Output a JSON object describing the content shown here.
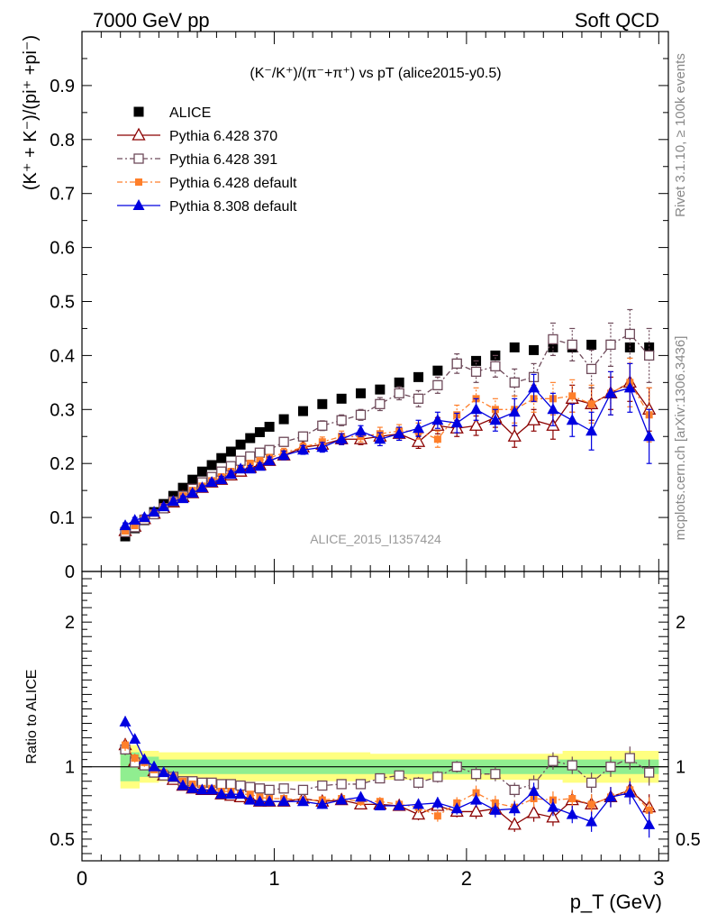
{
  "header": {
    "left": "7000 GeV pp",
    "right": "Soft QCD"
  },
  "plot_title": "(K⁻/K⁺)/(π⁻+π⁺) vs pT (alice2015-y0.5)",
  "analysis_label": "ALICE_2015_I1357424",
  "side_labels": {
    "rivet": "Rivet 3.1.10, ≥ 100k events",
    "mcplots": "mcplots.cern.ch [arXiv:1306.3436]"
  },
  "colors": {
    "ALICE": "#000000",
    "Pythia 6.428 370": "#8b0000",
    "Pythia 6.428 391": "#6e4a5a",
    "Pythia 6.428 default": "#ff7f2a",
    "Pythia 8.308 default": "#0000e0",
    "band_inner": "#90ee90",
    "band_outer": "#ffff80"
  },
  "chart_data": [
    {
      "type": "scatter",
      "panel": "main",
      "ylabel": "(K⁺ + K⁻)/(pi⁺ +pi⁻)",
      "xlim": [
        0,
        3.05
      ],
      "ylim": [
        0,
        1.0
      ],
      "yticks": [
        0,
        0.1,
        0.2,
        0.3,
        0.4,
        0.5,
        0.6,
        0.7,
        0.8,
        0.9
      ],
      "x": [
        0.225,
        0.275,
        0.325,
        0.375,
        0.425,
        0.475,
        0.525,
        0.575,
        0.625,
        0.675,
        0.725,
        0.775,
        0.825,
        0.875,
        0.925,
        0.975,
        1.05,
        1.15,
        1.25,
        1.35,
        1.45,
        1.55,
        1.65,
        1.75,
        1.85,
        1.95,
        2.05,
        2.15,
        2.25,
        2.35,
        2.45,
        2.55,
        2.65,
        2.75,
        2.85,
        2.95
      ],
      "series": [
        {
          "name": "ALICE",
          "marker": "square-filled",
          "values": [
            0.065,
            0.08,
            0.095,
            0.11,
            0.125,
            0.14,
            0.155,
            0.17,
            0.185,
            0.197,
            0.21,
            0.222,
            0.235,
            0.247,
            0.258,
            0.268,
            0.282,
            0.297,
            0.31,
            0.32,
            0.33,
            0.337,
            0.35,
            0.36,
            0.372,
            0.385,
            0.39,
            0.4,
            0.415,
            0.41,
            0.415,
            0.415,
            0.42,
            0.42,
            0.415,
            0.415
          ]
        },
        {
          "name": "Pythia 6.428 370",
          "marker": "triangle-open",
          "line": "solid",
          "values": [
            0.075,
            0.083,
            0.097,
            0.107,
            0.118,
            0.128,
            0.138,
            0.145,
            0.155,
            0.165,
            0.17,
            0.178,
            0.185,
            0.192,
            0.197,
            0.205,
            0.215,
            0.23,
            0.235,
            0.245,
            0.245,
            0.25,
            0.255,
            0.24,
            0.27,
            0.265,
            0.27,
            0.285,
            0.25,
            0.28,
            0.27,
            0.32,
            0.31,
            0.33,
            0.35,
            0.3
          ],
          "err": [
            0.005,
            0.005,
            0.005,
            0.005,
            0.005,
            0.005,
            0.005,
            0.005,
            0.005,
            0.005,
            0.005,
            0.005,
            0.006,
            0.006,
            0.006,
            0.006,
            0.008,
            0.008,
            0.008,
            0.01,
            0.01,
            0.01,
            0.012,
            0.012,
            0.015,
            0.015,
            0.018,
            0.018,
            0.02,
            0.02,
            0.025,
            0.025,
            0.03,
            0.03,
            0.035,
            0.04
          ]
        },
        {
          "name": "Pythia 6.428 391",
          "marker": "square-open",
          "line": "dashdot",
          "values": [
            0.073,
            0.082,
            0.096,
            0.106,
            0.117,
            0.13,
            0.14,
            0.153,
            0.165,
            0.175,
            0.185,
            0.195,
            0.205,
            0.213,
            0.22,
            0.225,
            0.24,
            0.25,
            0.27,
            0.28,
            0.29,
            0.31,
            0.33,
            0.32,
            0.345,
            0.385,
            0.37,
            0.38,
            0.35,
            0.36,
            0.43,
            0.42,
            0.375,
            0.42,
            0.44,
            0.4
          ],
          "err": [
            0.005,
            0.005,
            0.005,
            0.005,
            0.005,
            0.005,
            0.005,
            0.005,
            0.005,
            0.005,
            0.006,
            0.006,
            0.006,
            0.006,
            0.006,
            0.007,
            0.008,
            0.008,
            0.009,
            0.01,
            0.01,
            0.012,
            0.012,
            0.015,
            0.015,
            0.018,
            0.02,
            0.02,
            0.025,
            0.025,
            0.03,
            0.03,
            0.035,
            0.04,
            0.045,
            0.05
          ]
        },
        {
          "name": "Pythia 6.428 default",
          "marker": "square-filled-small",
          "line": "dashdot",
          "values": [
            0.075,
            0.085,
            0.098,
            0.108,
            0.12,
            0.13,
            0.14,
            0.15,
            0.158,
            0.168,
            0.175,
            0.185,
            0.19,
            0.2,
            0.205,
            0.21,
            0.22,
            0.23,
            0.24,
            0.25,
            0.25,
            0.255,
            0.26,
            0.26,
            0.245,
            0.29,
            0.32,
            0.3,
            0.3,
            0.32,
            0.32,
            0.325,
            0.31,
            0.33,
            0.35,
            0.29
          ],
          "err": [
            0.005,
            0.005,
            0.005,
            0.005,
            0.005,
            0.005,
            0.005,
            0.005,
            0.005,
            0.005,
            0.006,
            0.006,
            0.006,
            0.006,
            0.006,
            0.007,
            0.008,
            0.008,
            0.009,
            0.01,
            0.01,
            0.012,
            0.012,
            0.015,
            0.015,
            0.018,
            0.02,
            0.02,
            0.025,
            0.025,
            0.03,
            0.03,
            0.035,
            0.04,
            0.045,
            0.05
          ]
        },
        {
          "name": "Pythia 8.308 default",
          "marker": "triangle-filled",
          "line": "solid",
          "values": [
            0.085,
            0.095,
            0.1,
            0.11,
            0.12,
            0.13,
            0.135,
            0.145,
            0.155,
            0.165,
            0.17,
            0.18,
            0.19,
            0.19,
            0.195,
            0.205,
            0.215,
            0.225,
            0.23,
            0.245,
            0.26,
            0.245,
            0.255,
            0.265,
            0.28,
            0.275,
            0.3,
            0.28,
            0.295,
            0.34,
            0.3,
            0.28,
            0.26,
            0.33,
            0.34,
            0.25
          ],
          "err": [
            0.005,
            0.005,
            0.005,
            0.005,
            0.005,
            0.005,
            0.005,
            0.005,
            0.005,
            0.005,
            0.006,
            0.006,
            0.006,
            0.006,
            0.006,
            0.007,
            0.008,
            0.008,
            0.009,
            0.01,
            0.01,
            0.012,
            0.012,
            0.015,
            0.015,
            0.018,
            0.02,
            0.02,
            0.025,
            0.025,
            0.03,
            0.03,
            0.035,
            0.04,
            0.045,
            0.05
          ]
        }
      ],
      "legend_position": "top-left"
    },
    {
      "type": "scatter",
      "panel": "ratio",
      "xlabel": "p_T (GeV)",
      "ylabel": "Ratio to ALICE",
      "xlim": [
        0,
        3.05
      ],
      "ylim": [
        0.35,
        2.35
      ],
      "xticks": [
        0,
        1,
        2,
        3
      ],
      "yticks": [
        0.5,
        1,
        2
      ],
      "reference": 1,
      "band_inner": {
        "x": [
          0.2,
          0.3,
          0.4,
          1.5,
          2.5,
          3.0
        ],
        "halfwidth": [
          0.1,
          0.07,
          0.05,
          0.05,
          0.05,
          0.05
        ]
      },
      "band_outer": {
        "x": [
          0.2,
          0.3,
          0.4,
          1.5,
          2.5,
          3.0
        ],
        "halfwidth": [
          0.15,
          0.11,
          0.1,
          0.09,
          0.11,
          0.11
        ]
      },
      "series": [
        {
          "name": "Pythia 6.428 370",
          "values": [
            1.15,
            1.04,
            1.02,
            0.97,
            0.94,
            0.91,
            0.87,
            0.85,
            0.84,
            0.84,
            0.81,
            0.8,
            0.79,
            0.78,
            0.76,
            0.76,
            0.76,
            0.78,
            0.76,
            0.77,
            0.74,
            0.74,
            0.73,
            0.67,
            0.73,
            0.69,
            0.69,
            0.71,
            0.6,
            0.68,
            0.65,
            0.77,
            0.74,
            0.79,
            0.84,
            0.72
          ],
          "err": [
            0.04,
            0.03,
            0.03,
            0.02,
            0.02,
            0.02,
            0.02,
            0.02,
            0.02,
            0.02,
            0.02,
            0.02,
            0.02,
            0.02,
            0.02,
            0.02,
            0.03,
            0.03,
            0.03,
            0.03,
            0.03,
            0.03,
            0.03,
            0.04,
            0.04,
            0.04,
            0.05,
            0.05,
            0.05,
            0.06,
            0.06,
            0.06,
            0.07,
            0.07,
            0.08,
            0.09
          ]
        },
        {
          "name": "Pythia 6.428 391",
          "values": [
            1.12,
            1.03,
            1.01,
            0.96,
            0.94,
            0.93,
            0.9,
            0.9,
            0.89,
            0.89,
            0.88,
            0.88,
            0.87,
            0.86,
            0.85,
            0.84,
            0.85,
            0.84,
            0.87,
            0.88,
            0.88,
            0.92,
            0.94,
            0.89,
            0.93,
            1.0,
            0.95,
            0.95,
            0.84,
            0.88,
            1.04,
            1.01,
            0.89,
            1.0,
            1.06,
            0.96
          ],
          "err": [
            0.04,
            0.03,
            0.03,
            0.02,
            0.02,
            0.02,
            0.02,
            0.02,
            0.02,
            0.02,
            0.02,
            0.02,
            0.02,
            0.02,
            0.02,
            0.02,
            0.03,
            0.03,
            0.03,
            0.03,
            0.03,
            0.03,
            0.03,
            0.04,
            0.04,
            0.04,
            0.05,
            0.05,
            0.05,
            0.06,
            0.06,
            0.06,
            0.07,
            0.07,
            0.08,
            0.09
          ]
        },
        {
          "name": "Pythia 6.428 default",
          "values": [
            1.15,
            1.06,
            1.03,
            0.98,
            0.96,
            0.93,
            0.9,
            0.88,
            0.85,
            0.85,
            0.83,
            0.83,
            0.81,
            0.81,
            0.79,
            0.78,
            0.78,
            0.77,
            0.77,
            0.78,
            0.76,
            0.76,
            0.74,
            0.72,
            0.66,
            0.75,
            0.82,
            0.75,
            0.72,
            0.78,
            0.77,
            0.78,
            0.74,
            0.79,
            0.84,
            0.7
          ],
          "err": [
            0.04,
            0.03,
            0.03,
            0.02,
            0.02,
            0.02,
            0.02,
            0.02,
            0.02,
            0.02,
            0.02,
            0.02,
            0.02,
            0.02,
            0.02,
            0.02,
            0.03,
            0.03,
            0.03,
            0.03,
            0.03,
            0.03,
            0.03,
            0.04,
            0.04,
            0.04,
            0.05,
            0.05,
            0.05,
            0.06,
            0.06,
            0.06,
            0.07,
            0.07,
            0.08,
            0.09
          ]
        },
        {
          "name": "Pythia 8.308 default",
          "values": [
            1.31,
            1.19,
            1.05,
            1.0,
            0.96,
            0.93,
            0.87,
            0.85,
            0.84,
            0.84,
            0.81,
            0.81,
            0.81,
            0.77,
            0.76,
            0.76,
            0.76,
            0.76,
            0.74,
            0.77,
            0.79,
            0.73,
            0.73,
            0.74,
            0.75,
            0.71,
            0.77,
            0.7,
            0.71,
            0.83,
            0.72,
            0.67,
            0.62,
            0.79,
            0.82,
            0.6
          ],
          "err": [
            0.04,
            0.03,
            0.03,
            0.02,
            0.02,
            0.02,
            0.02,
            0.02,
            0.02,
            0.02,
            0.02,
            0.02,
            0.02,
            0.02,
            0.02,
            0.02,
            0.03,
            0.03,
            0.03,
            0.03,
            0.03,
            0.03,
            0.03,
            0.04,
            0.04,
            0.04,
            0.05,
            0.05,
            0.05,
            0.06,
            0.06,
            0.06,
            0.07,
            0.07,
            0.08,
            0.09
          ]
        }
      ]
    }
  ]
}
